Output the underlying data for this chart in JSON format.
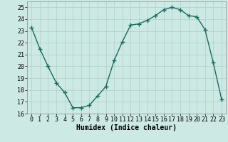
{
  "x": [
    0,
    1,
    2,
    3,
    4,
    5,
    6,
    7,
    8,
    9,
    10,
    11,
    12,
    13,
    14,
    15,
    16,
    17,
    18,
    19,
    20,
    21,
    22,
    23
  ],
  "y": [
    23.3,
    21.5,
    20.0,
    18.6,
    17.8,
    16.5,
    16.5,
    16.7,
    17.5,
    18.3,
    20.5,
    22.1,
    23.5,
    23.6,
    23.9,
    24.3,
    24.8,
    25.0,
    24.8,
    24.3,
    24.2,
    23.1,
    20.3,
    17.2
  ],
  "line_color": "#1a6b5e",
  "marker": "+",
  "marker_size": 4,
  "bg_color": "#cce9e4",
  "grid_color": "#aed0ca",
  "xlabel": "Humidex (Indice chaleur)",
  "xlim": [
    -0.5,
    23.5
  ],
  "ylim": [
    16,
    25.5
  ],
  "yticks": [
    16,
    17,
    18,
    19,
    20,
    21,
    22,
    23,
    24,
    25
  ],
  "xticks": [
    0,
    1,
    2,
    3,
    4,
    5,
    6,
    7,
    8,
    9,
    10,
    11,
    12,
    13,
    14,
    15,
    16,
    17,
    18,
    19,
    20,
    21,
    22,
    23
  ],
  "xlabel_fontsize": 7,
  "tick_fontsize": 6,
  "line_width": 1.0
}
